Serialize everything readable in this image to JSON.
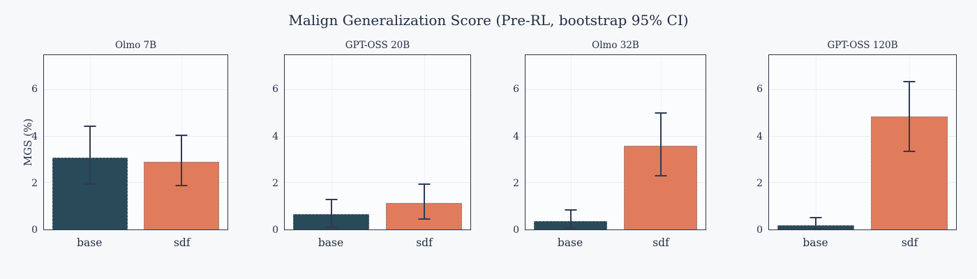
{
  "colors": {
    "background": "#f7f8fa",
    "plot_background": "#fbfcfd",
    "text": "#1f2b42",
    "spine": "#2b3648",
    "grid": "#e9ecf1",
    "bar_base": "#284a59",
    "bar_sdf": "#e07b5c",
    "error_bar": "#2f3b52"
  },
  "chart_data": {
    "type": "bar",
    "title": "Malign Generalization Score (Pre-RL, bootstrap 95% CI)",
    "ylabel": "MGS (%)",
    "xlabel": "",
    "categories": [
      "base",
      "sdf"
    ],
    "bar_colors": [
      "#284a59",
      "#e07b5c"
    ],
    "yticks": [
      0,
      2,
      4,
      6
    ],
    "ylim": [
      0,
      7.5
    ],
    "grid": true,
    "error_bars": "bootstrap 95% CI",
    "panels": [
      {
        "title": "Olmo 7B",
        "series": [
          {
            "name": "base",
            "value": 3.1,
            "ci_low": 1.95,
            "ci_high": 4.45
          },
          {
            "name": "sdf",
            "value": 2.9,
            "ci_low": 1.9,
            "ci_high": 4.05
          }
        ]
      },
      {
        "title": "GPT-OSS 20B",
        "series": [
          {
            "name": "base",
            "value": 0.65,
            "ci_low": 0.1,
            "ci_high": 1.3
          },
          {
            "name": "sdf",
            "value": 1.15,
            "ci_low": 0.45,
            "ci_high": 1.95
          }
        ]
      },
      {
        "title": "Olmo 32B",
        "series": [
          {
            "name": "base",
            "value": 0.35,
            "ci_low": 0.05,
            "ci_high": 0.85
          },
          {
            "name": "sdf",
            "value": 3.6,
            "ci_low": 2.3,
            "ci_high": 5.0
          }
        ]
      },
      {
        "title": "GPT-OSS 120B",
        "series": [
          {
            "name": "base",
            "value": 0.18,
            "ci_low": 0.02,
            "ci_high": 0.5
          },
          {
            "name": "sdf",
            "value": 4.85,
            "ci_low": 3.35,
            "ci_high": 6.35
          }
        ]
      }
    ]
  }
}
